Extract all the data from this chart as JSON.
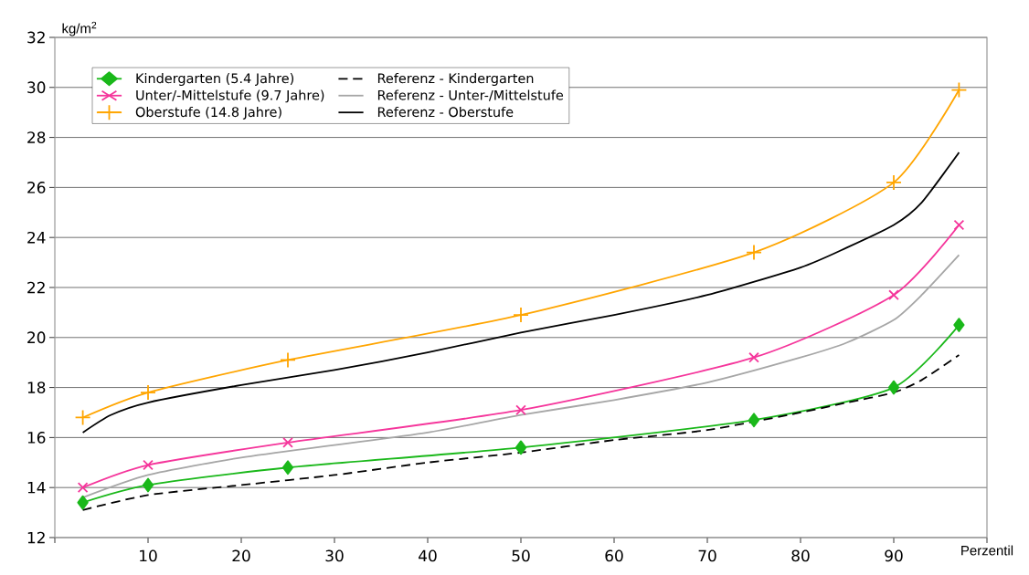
{
  "chart_data": {
    "type": "line",
    "xlabel": "Perzentil",
    "ylabel": "kg/m$^{2}$",
    "x": [
      3,
      10,
      25,
      50,
      75,
      90,
      97
    ],
    "xlim": [
      0,
      100
    ],
    "ylim": [
      12,
      32
    ],
    "xticks": [
      {
        "value": 0,
        "label": null
      },
      10,
      20,
      30,
      40,
      50,
      60,
      70,
      80,
      90,
      {
        "value": 100,
        "label": null
      }
    ],
    "yticks": [
      12,
      14,
      16,
      18,
      20,
      22,
      24,
      26,
      28,
      30,
      32
    ],
    "grid": "y",
    "legend": "top left",
    "series": [
      {
        "name": "Kindergarten (5.4 Jahre)",
        "color": "#1ab81a",
        "marker": "diamond",
        "line_style": "solid",
        "values": [
          13.4,
          14.1,
          14.8,
          15.6,
          16.7,
          18.0,
          20.5
        ]
      },
      {
        "name": "Referenz - Kindergarten",
        "color": "#000000",
        "marker": "none",
        "line_style": "dashed",
        "x": [
          3,
          10,
          20,
          30,
          40,
          50,
          60,
          70,
          80,
          85,
          90,
          93,
          97
        ],
        "values": [
          13.1,
          13.7,
          14.1,
          14.5,
          15.0,
          15.4,
          15.9,
          16.3,
          17.0,
          17.4,
          17.8,
          18.3,
          19.3
        ]
      },
      {
        "name": "Unter/-Mittelstufe (9.7 Jahre)",
        "color": "#f5359b",
        "marker": "cross",
        "line_style": "solid",
        "values": [
          14.0,
          14.9,
          15.8,
          17.1,
          19.2,
          21.7,
          24.5
        ]
      },
      {
        "name": "Referenz - Unter-/Mittelstufe",
        "color": "#a6a6a6",
        "marker": "none",
        "line_style": "solid",
        "x": [
          3,
          10,
          20,
          30,
          40,
          50,
          60,
          70,
          80,
          85,
          90,
          93,
          97
        ],
        "values": [
          13.6,
          14.5,
          15.2,
          15.7,
          16.2,
          16.9,
          17.5,
          18.2,
          19.2,
          19.8,
          20.7,
          21.7,
          23.3
        ]
      },
      {
        "name": "Oberstufe (14.8 Jahre)",
        "color": "#ffa500",
        "marker": "cross-plus",
        "line_style": "solid",
        "values": [
          16.8,
          17.8,
          19.1,
          20.9,
          23.4,
          26.2,
          29.9
        ]
      },
      {
        "name": "Referenz - Oberstufe",
        "color": "#000000",
        "marker": "none",
        "line_style": "solid",
        "x": [
          3,
          6,
          10,
          20,
          30,
          40,
          50,
          60,
          70,
          80,
          85,
          90,
          93,
          97
        ],
        "values": [
          16.2,
          16.9,
          17.4,
          18.1,
          18.7,
          19.4,
          20.2,
          20.9,
          21.7,
          22.8,
          23.6,
          24.5,
          25.4,
          27.4
        ]
      }
    ]
  }
}
